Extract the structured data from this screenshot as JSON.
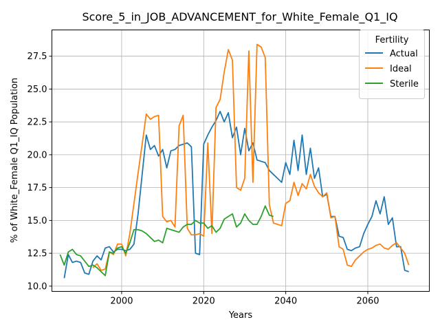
{
  "chart_data": {
    "type": "line",
    "title": "Score_5_in_JOB_ADVANCEMENT_for_White_Female_Q1_IQ",
    "xlabel": "Years",
    "ylabel": "% of White_Female Q1_IQ Population",
    "xlim": [
      1983,
      2075
    ],
    "ylim": [
      9.6,
      29.5
    ],
    "x_ticks": [
      2000,
      2020,
      2040,
      2060
    ],
    "x_tick_labels": [
      "2000",
      "2020",
      "2040",
      "2060"
    ],
    "y_ticks": [
      10.0,
      12.5,
      15.0,
      17.5,
      20.0,
      22.5,
      25.0,
      27.5
    ],
    "y_tick_labels": [
      "10.0",
      "12.5",
      "15.0",
      "17.5",
      "20.0",
      "22.5",
      "25.0",
      "27.5"
    ],
    "grid": true,
    "legend": {
      "title": "Fertility",
      "placement": "top-right"
    },
    "series": [
      {
        "name": "Actual",
        "color": "#1f77b4",
        "points": [
          [
            1986,
            10.6
          ],
          [
            1987,
            12.4
          ],
          [
            1988,
            11.8
          ],
          [
            1989,
            11.9
          ],
          [
            1990,
            11.8
          ],
          [
            1991,
            11.0
          ],
          [
            1992,
            10.9
          ],
          [
            1993,
            11.9
          ],
          [
            1994,
            12.3
          ],
          [
            1995,
            12.0
          ],
          [
            1996,
            12.9
          ],
          [
            1997,
            13.0
          ],
          [
            1998,
            12.6
          ],
          [
            1999,
            12.8
          ],
          [
            2000,
            12.8
          ],
          [
            2001,
            12.7
          ],
          [
            2002,
            12.8
          ],
          [
            2003,
            13.2
          ],
          [
            2004,
            15.5
          ],
          [
            2005,
            18.5
          ],
          [
            2006,
            21.5
          ],
          [
            2007,
            20.4
          ],
          [
            2008,
            20.7
          ],
          [
            2009,
            19.9
          ],
          [
            2010,
            20.4
          ],
          [
            2011,
            19.0
          ],
          [
            2012,
            20.3
          ],
          [
            2013,
            20.4
          ],
          [
            2014,
            20.7
          ],
          [
            2015,
            20.8
          ],
          [
            2016,
            20.9
          ],
          [
            2017,
            20.6
          ],
          [
            2018,
            12.5
          ],
          [
            2019,
            12.4
          ],
          [
            2020,
            20.8
          ],
          [
            2021,
            21.5
          ],
          [
            2022,
            22.1
          ],
          [
            2023,
            22.6
          ],
          [
            2024,
            23.3
          ],
          [
            2025,
            22.5
          ],
          [
            2026,
            23.2
          ],
          [
            2027,
            21.3
          ],
          [
            2028,
            22.1
          ],
          [
            2029,
            20.0
          ],
          [
            2030,
            22.0
          ],
          [
            2031,
            20.3
          ],
          [
            2032,
            20.9
          ],
          [
            2033,
            19.6
          ],
          [
            2034,
            19.5
          ],
          [
            2035,
            19.4
          ],
          [
            2036,
            18.8
          ],
          [
            2037,
            18.5
          ],
          [
            2038,
            18.2
          ],
          [
            2039,
            17.9
          ],
          [
            2040,
            19.4
          ],
          [
            2041,
            18.5
          ],
          [
            2042,
            21.1
          ],
          [
            2043,
            18.8
          ],
          [
            2044,
            21.5
          ],
          [
            2045,
            18.5
          ],
          [
            2046,
            20.5
          ],
          [
            2047,
            18.2
          ],
          [
            2048,
            19.0
          ],
          [
            2049,
            16.8
          ],
          [
            2050,
            17.0
          ],
          [
            2051,
            15.3
          ],
          [
            2052,
            15.3
          ],
          [
            2053,
            13.8
          ],
          [
            2054,
            13.7
          ],
          [
            2055,
            12.8
          ],
          [
            2056,
            12.7
          ],
          [
            2057,
            12.9
          ],
          [
            2058,
            13.0
          ],
          [
            2059,
            14.0
          ],
          [
            2060,
            14.7
          ],
          [
            2061,
            15.3
          ],
          [
            2062,
            16.5
          ],
          [
            2063,
            15.5
          ],
          [
            2064,
            16.8
          ],
          [
            2065,
            14.7
          ],
          [
            2066,
            15.2
          ],
          [
            2067,
            13.0
          ],
          [
            2068,
            13.0
          ],
          [
            2069,
            11.2
          ],
          [
            2070,
            11.1
          ]
        ]
      },
      {
        "name": "Ideal",
        "color": "#ff7f0e",
        "points": [
          [
            1993,
            11.4
          ],
          [
            1994,
            11.7
          ],
          [
            1995,
            11.2
          ],
          [
            1996,
            11.3
          ],
          [
            1997,
            12.6
          ],
          [
            1998,
            12.4
          ],
          [
            1999,
            13.2
          ],
          [
            2000,
            13.2
          ],
          [
            2001,
            12.3
          ],
          [
            2002,
            14.0
          ],
          [
            2003,
            16.3
          ],
          [
            2004,
            18.6
          ],
          [
            2005,
            20.8
          ],
          [
            2006,
            23.1
          ],
          [
            2007,
            22.7
          ],
          [
            2008,
            22.9
          ],
          [
            2009,
            23.0
          ],
          [
            2010,
            15.3
          ],
          [
            2011,
            14.9
          ],
          [
            2012,
            15.0
          ],
          [
            2013,
            14.5
          ],
          [
            2014,
            22.2
          ],
          [
            2015,
            23.0
          ],
          [
            2016,
            14.4
          ],
          [
            2017,
            13.9
          ],
          [
            2018,
            13.9
          ],
          [
            2019,
            14.0
          ],
          [
            2020,
            13.8
          ],
          [
            2021,
            20.9
          ],
          [
            2022,
            14.0
          ],
          [
            2023,
            23.6
          ],
          [
            2024,
            24.2
          ],
          [
            2025,
            26.3
          ],
          [
            2026,
            28.0
          ],
          [
            2027,
            27.2
          ],
          [
            2028,
            17.5
          ],
          [
            2029,
            17.3
          ],
          [
            2030,
            18.2
          ],
          [
            2031,
            27.9
          ],
          [
            2032,
            17.9
          ],
          [
            2033,
            28.4
          ],
          [
            2034,
            28.2
          ],
          [
            2035,
            27.4
          ],
          [
            2036,
            16.2
          ],
          [
            2037,
            14.8
          ],
          [
            2038,
            14.7
          ],
          [
            2039,
            14.6
          ],
          [
            2040,
            16.3
          ],
          [
            2041,
            16.5
          ],
          [
            2042,
            17.9
          ],
          [
            2043,
            16.9
          ],
          [
            2044,
            17.8
          ],
          [
            2045,
            17.4
          ],
          [
            2046,
            18.5
          ],
          [
            2047,
            17.6
          ],
          [
            2048,
            17.1
          ],
          [
            2049,
            16.8
          ],
          [
            2050,
            17.1
          ],
          [
            2051,
            15.2
          ],
          [
            2052,
            15.3
          ],
          [
            2053,
            13.0
          ],
          [
            2054,
            12.8
          ],
          [
            2055,
            11.6
          ],
          [
            2056,
            11.5
          ],
          [
            2057,
            12.0
          ],
          [
            2058,
            12.3
          ],
          [
            2059,
            12.6
          ],
          [
            2060,
            12.8
          ],
          [
            2061,
            12.9
          ],
          [
            2062,
            13.1
          ],
          [
            2063,
            13.2
          ],
          [
            2064,
            12.9
          ],
          [
            2065,
            12.8
          ],
          [
            2066,
            13.1
          ],
          [
            2067,
            13.3
          ],
          [
            2068,
            12.9
          ],
          [
            2069,
            12.5
          ],
          [
            2070,
            11.6
          ]
        ]
      },
      {
        "name": "Sterile",
        "color": "#2ca02c",
        "points": [
          [
            1985,
            12.4
          ],
          [
            1986,
            11.6
          ],
          [
            1987,
            12.6
          ],
          [
            1988,
            12.8
          ],
          [
            1989,
            12.4
          ],
          [
            1990,
            12.3
          ],
          [
            1991,
            11.9
          ],
          [
            1992,
            11.5
          ],
          [
            1993,
            11.6
          ],
          [
            1994,
            11.4
          ],
          [
            1995,
            11.1
          ],
          [
            1996,
            10.8
          ],
          [
            1997,
            12.6
          ],
          [
            1998,
            12.5
          ],
          [
            1999,
            12.9
          ],
          [
            2000,
            13.0
          ],
          [
            2001,
            12.5
          ],
          [
            2002,
            13.3
          ],
          [
            2003,
            14.3
          ],
          [
            2004,
            14.3
          ],
          [
            2005,
            14.2
          ],
          [
            2006,
            14.0
          ],
          [
            2007,
            13.7
          ],
          [
            2008,
            13.4
          ],
          [
            2009,
            13.5
          ],
          [
            2010,
            13.3
          ],
          [
            2011,
            14.4
          ],
          [
            2012,
            14.3
          ],
          [
            2013,
            14.2
          ],
          [
            2014,
            14.1
          ],
          [
            2015,
            14.5
          ],
          [
            2016,
            14.7
          ],
          [
            2017,
            14.7
          ],
          [
            2018,
            15.0
          ],
          [
            2019,
            14.8
          ],
          [
            2020,
            14.8
          ],
          [
            2021,
            14.4
          ],
          [
            2022,
            14.6
          ],
          [
            2023,
            14.1
          ],
          [
            2024,
            14.4
          ],
          [
            2025,
            15.1
          ],
          [
            2026,
            15.3
          ],
          [
            2027,
            15.5
          ],
          [
            2028,
            14.5
          ],
          [
            2029,
            14.8
          ],
          [
            2030,
            15.5
          ],
          [
            2031,
            15.0
          ],
          [
            2032,
            14.7
          ],
          [
            2033,
            14.7
          ],
          [
            2034,
            15.3
          ],
          [
            2035,
            16.1
          ],
          [
            2036,
            15.4
          ],
          [
            2037,
            15.3
          ]
        ]
      }
    ]
  }
}
